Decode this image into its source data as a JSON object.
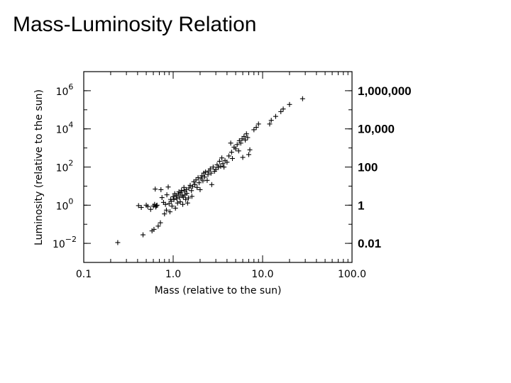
{
  "slide": {
    "title": "Mass-Luminosity Relation"
  },
  "chart_data": {
    "type": "scatter",
    "title": "",
    "xlabel": "Mass (relative to the sun)",
    "ylabel": "Luminosity (relative to the sun)",
    "xscale": "log",
    "yscale": "log",
    "xlim": [
      0.1,
      100.0
    ],
    "ylim": [
      0.001,
      10000000
    ],
    "grid": false,
    "marker": "+",
    "x_ticks": [
      {
        "value": 0.1,
        "label": "0.1"
      },
      {
        "value": 1.0,
        "label": "1.0"
      },
      {
        "value": 10.0,
        "label": "10.0"
      },
      {
        "value": 100.0,
        "label": "100.0"
      }
    ],
    "y_ticks": [
      {
        "value": 0.01,
        "base": "10",
        "exp": "−2"
      },
      {
        "value": 1,
        "base": "10",
        "exp": "0"
      },
      {
        "value": 100,
        "base": "10",
        "exp": "2"
      },
      {
        "value": 10000,
        "base": "10",
        "exp": "4"
      },
      {
        "value": 1000000,
        "base": "10",
        "exp": "6"
      }
    ],
    "right_labels": [
      {
        "value": 1000000,
        "label": "1,000,000"
      },
      {
        "value": 10000,
        "label": "10,000"
      },
      {
        "value": 100,
        "label": "100"
      },
      {
        "value": 1,
        "label": "1"
      },
      {
        "value": 0.01,
        "label": "0.01"
      }
    ],
    "points": [
      [
        0.24,
        0.011
      ],
      [
        0.41,
        0.95
      ],
      [
        0.44,
        0.76
      ],
      [
        0.46,
        0.028
      ],
      [
        0.5,
        1.0
      ],
      [
        0.52,
        0.85
      ],
      [
        0.56,
        0.6
      ],
      [
        0.58,
        0.045
      ],
      [
        0.6,
        0.9
      ],
      [
        0.61,
        0.054
      ],
      [
        0.62,
        1.1
      ],
      [
        0.63,
        7.0
      ],
      [
        0.64,
        0.8
      ],
      [
        0.65,
        0.95
      ],
      [
        0.66,
        1.0
      ],
      [
        0.68,
        0.08
      ],
      [
        0.72,
        0.12
      ],
      [
        0.73,
        6.5
      ],
      [
        0.75,
        2.5
      ],
      [
        0.78,
        1.4
      ],
      [
        0.8,
        0.35
      ],
      [
        0.82,
        1.1
      ],
      [
        0.84,
        0.55
      ],
      [
        0.85,
        3.5
      ],
      [
        0.88,
        9.0
      ],
      [
        0.9,
        1.2
      ],
      [
        0.92,
        0.45
      ],
      [
        0.94,
        2.0
      ],
      [
        0.95,
        1.6
      ],
      [
        0.97,
        0.9
      ],
      [
        1.0,
        2.8
      ],
      [
        1.02,
        2.0
      ],
      [
        1.04,
        4.0
      ],
      [
        1.06,
        0.7
      ],
      [
        1.08,
        3.2
      ],
      [
        1.1,
        2.2
      ],
      [
        1.12,
        1.3
      ],
      [
        1.14,
        3.8
      ],
      [
        1.16,
        5.0
      ],
      [
        1.18,
        2.6
      ],
      [
        1.2,
        1.5
      ],
      [
        1.22,
        4.5
      ],
      [
        1.24,
        6.0
      ],
      [
        1.26,
        3.1
      ],
      [
        1.28,
        1.1
      ],
      [
        1.3,
        2.6
      ],
      [
        1.32,
        8.5
      ],
      [
        1.34,
        5.5
      ],
      [
        1.36,
        3.5
      ],
      [
        1.38,
        2.0
      ],
      [
        1.4,
        6.5
      ],
      [
        1.42,
        4.2
      ],
      [
        1.45,
        1.3
      ],
      [
        1.48,
        2.4
      ],
      [
        1.5,
        8.0
      ],
      [
        1.55,
        11.0
      ],
      [
        1.6,
        5.8
      ],
      [
        1.62,
        2.9
      ],
      [
        1.65,
        9.5
      ],
      [
        1.7,
        17.0
      ],
      [
        1.75,
        12.0
      ],
      [
        1.8,
        21.0
      ],
      [
        1.85,
        8.5
      ],
      [
        1.9,
        28.0
      ],
      [
        1.95,
        15.0
      ],
      [
        2.0,
        6.5
      ],
      [
        2.05,
        24.0
      ],
      [
        2.1,
        35.0
      ],
      [
        2.15,
        19.0
      ],
      [
        2.2,
        48.0
      ],
      [
        2.25,
        30.0
      ],
      [
        2.3,
        55.0
      ],
      [
        2.4,
        20.0
      ],
      [
        2.45,
        40.0
      ],
      [
        2.5,
        62.0
      ],
      [
        2.6,
        80.0
      ],
      [
        2.65,
        48.0
      ],
      [
        2.7,
        12.0
      ],
      [
        2.8,
        100.0
      ],
      [
        2.9,
        60.0
      ],
      [
        3.0,
        75.0
      ],
      [
        3.1,
        130.0
      ],
      [
        3.2,
        95.0
      ],
      [
        3.3,
        200.0
      ],
      [
        3.4,
        110.0
      ],
      [
        3.5,
        300.0
      ],
      [
        3.6,
        150.0
      ],
      [
        3.7,
        100.0
      ],
      [
        3.8,
        220.0
      ],
      [
        4.0,
        180.0
      ],
      [
        4.2,
        380.0
      ],
      [
        4.4,
        1800.0
      ],
      [
        4.5,
        600.0
      ],
      [
        4.6,
        280.0
      ],
      [
        4.8,
        1100.0
      ],
      [
        5.0,
        900.0
      ],
      [
        5.2,
        1500.0
      ],
      [
        5.4,
        700.0
      ],
      [
        5.5,
        2400.0
      ],
      [
        5.7,
        1800.0
      ],
      [
        5.9,
        3000.0
      ],
      [
        6.0,
        320.0
      ],
      [
        6.2,
        4000.0
      ],
      [
        6.4,
        2600.0
      ],
      [
        6.6,
        5500.0
      ],
      [
        6.8,
        3500.0
      ],
      [
        7.0,
        450.0
      ],
      [
        7.2,
        800.0
      ],
      [
        8.0,
        9000.0
      ],
      [
        8.5,
        12000.0
      ],
      [
        9.0,
        18000.0
      ],
      [
        12.0,
        18000.0
      ],
      [
        12.5,
        28000.0
      ],
      [
        14.0,
        45000.0
      ],
      [
        16.0,
        80000.0
      ],
      [
        17.0,
        110000.0
      ],
      [
        20.0,
        190000.0
      ],
      [
        28.0,
        380000.0
      ]
    ]
  }
}
